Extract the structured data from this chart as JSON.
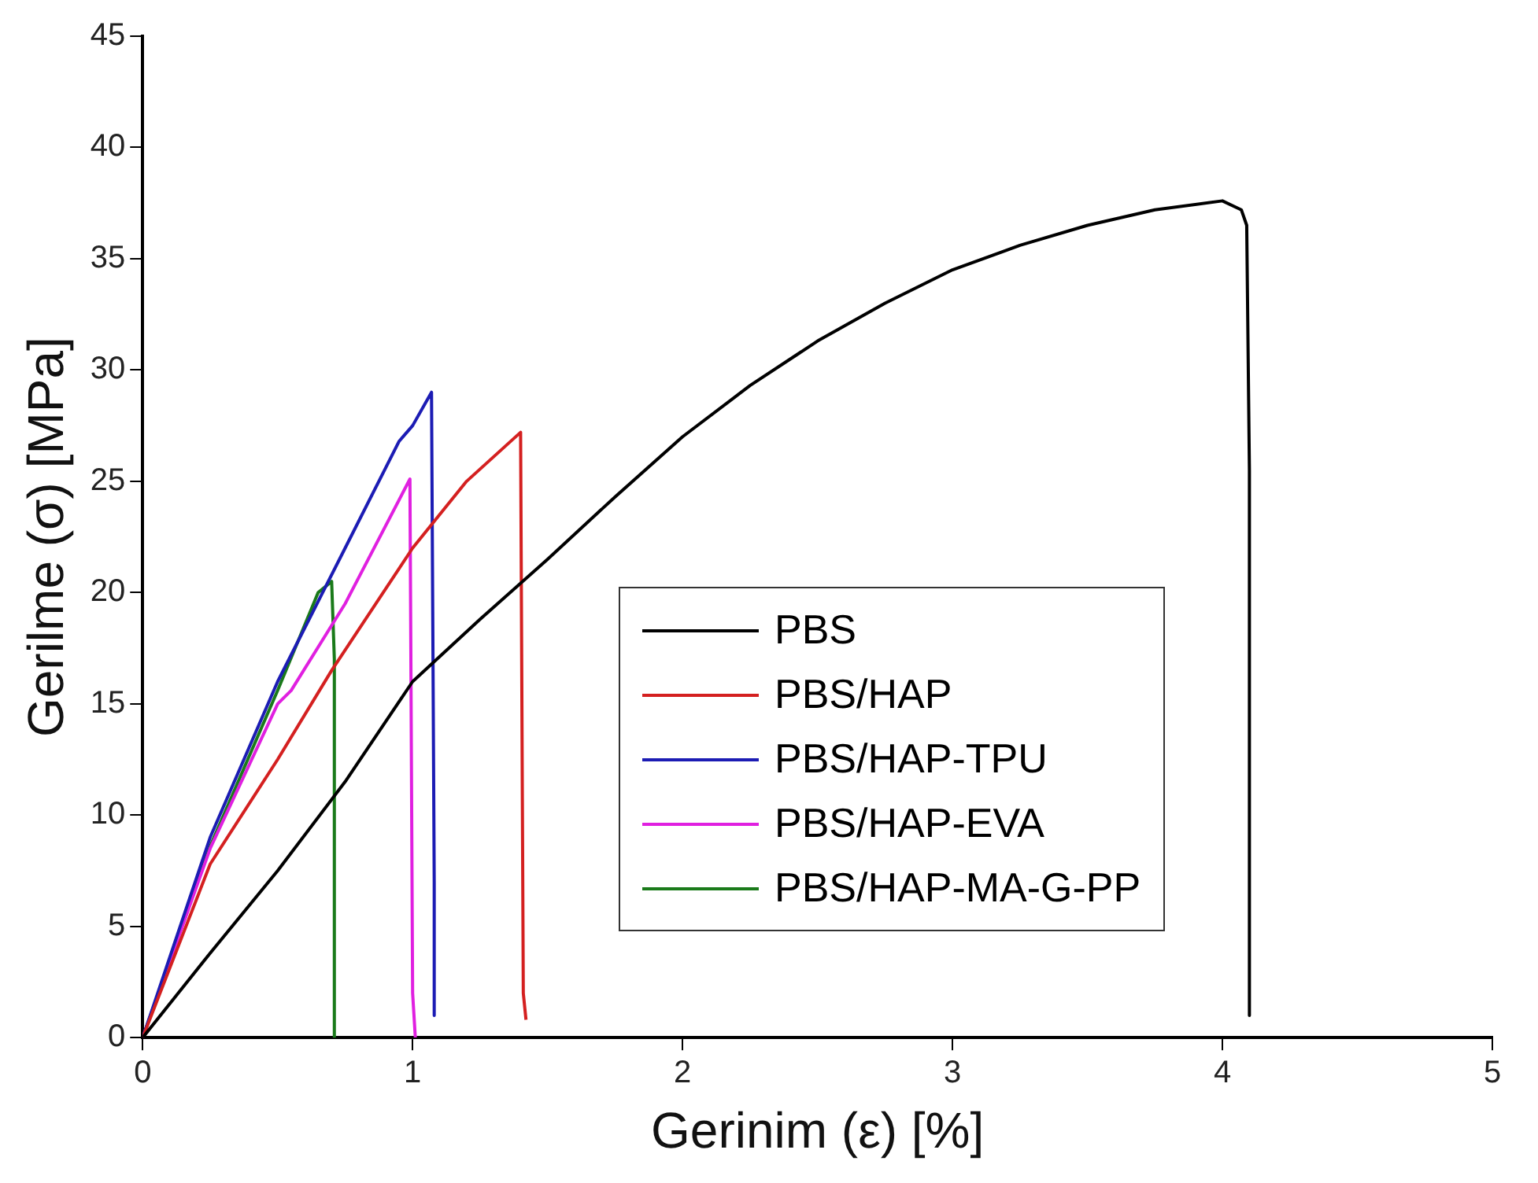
{
  "chart_data": {
    "type": "line",
    "xlabel": "Gerinim (ε) [%]",
    "ylabel": "Gerilme (σ) [MPa]",
    "xlim": [
      0,
      5
    ],
    "xticks": [
      0,
      1,
      2,
      3,
      4,
      5
    ],
    "ylim": [
      0,
      45
    ],
    "yticks": [
      0,
      5,
      10,
      15,
      20,
      25,
      30,
      35,
      40,
      45
    ],
    "grid": false,
    "legend": "right",
    "marker": "none",
    "line_style": "solid",
    "series": [
      {
        "name": "PBS",
        "color": "#000000",
        "x": [
          0,
          0.25,
          0.5,
          0.75,
          1,
          1.25,
          1.5,
          1.75,
          2,
          2.25,
          2.5,
          2.75,
          3,
          3.25,
          3.5,
          3.75,
          4,
          4.07,
          4.09,
          4.1,
          4.1
        ],
        "values": [
          0,
          3.8,
          7.5,
          11.5,
          16,
          18.8,
          21.5,
          24.3,
          27,
          29.3,
          31.3,
          33,
          34.5,
          35.6,
          36.5,
          37.2,
          37.6,
          37.2,
          36.5,
          25.5,
          1
        ]
      },
      {
        "name": "PBS/HAP",
        "color": "#d42020",
        "x": [
          0,
          0.25,
          0.5,
          0.7,
          1,
          1.2,
          1.4,
          1.41,
          1.42
        ],
        "values": [
          0,
          7.8,
          12.5,
          16.5,
          22,
          25,
          27.2,
          2,
          0.8
        ]
      },
      {
        "name": "PBS/HAP-TPU",
        "color": "#1c1cb4",
        "x": [
          0,
          0.25,
          0.5,
          0.75,
          0.95,
          1,
          1.07,
          1.08,
          1.08
        ],
        "values": [
          0,
          9,
          16,
          22,
          26.8,
          27.5,
          29,
          7,
          1
        ]
      },
      {
        "name": "PBS/HAP-EVA",
        "color": "#e020e0",
        "x": [
          0,
          0.25,
          0.5,
          0.55,
          0.75,
          0.99,
          1,
          1.01
        ],
        "values": [
          0,
          8.5,
          15,
          15.6,
          19.5,
          25.1,
          2,
          0
        ]
      },
      {
        "name": "PBS/HAP-MA-G-PP",
        "color": "#1a7a1a",
        "x": [
          0,
          0.25,
          0.5,
          0.65,
          0.7,
          0.71,
          0.71
        ],
        "values": [
          0,
          8.6,
          15.6,
          20,
          20.5,
          17,
          0
        ]
      }
    ]
  }
}
